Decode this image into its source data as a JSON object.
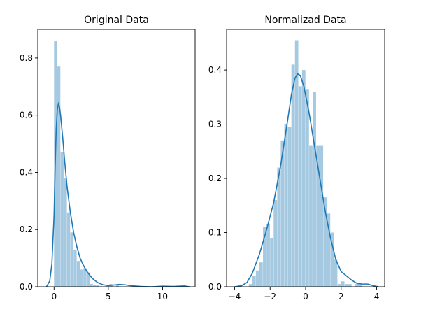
{
  "chart_data": [
    {
      "type": "bar",
      "title": "Original Data",
      "xlabel": "",
      "ylabel": "",
      "xlim": [
        -1.5,
        13.0
      ],
      "ylim": [
        0,
        0.9
      ],
      "xticks": [
        0,
        5,
        10
      ],
      "yticks": [
        0.0,
        0.2,
        0.4,
        0.6,
        0.8
      ],
      "ytick_labels": [
        "0.0",
        "0.2",
        "0.4",
        "0.6",
        "0.8"
      ],
      "bin_edges": [
        0.0,
        0.3,
        0.6,
        0.9,
        1.2,
        1.5,
        1.8,
        2.1,
        2.4,
        2.7,
        3.0,
        3.3,
        3.6,
        3.9,
        4.2,
        4.5,
        4.8,
        5.1,
        5.4,
        5.7,
        6.0,
        6.3,
        6.6,
        6.9,
        7.2,
        7.5,
        7.8,
        8.1,
        8.4,
        8.7,
        9.0,
        9.3,
        9.6,
        9.9,
        10.2,
        10.5,
        10.8,
        11.1,
        11.4,
        11.7,
        12.0
      ],
      "values": [
        0.86,
        0.77,
        0.47,
        0.38,
        0.26,
        0.19,
        0.13,
        0.09,
        0.06,
        0.065,
        0.05,
        0.01,
        0.005,
        0.005,
        0.0,
        0.0,
        0.005,
        0.01,
        0.0,
        0.005,
        0.0,
        0.0,
        0.0,
        0.0,
        0.0,
        0.0,
        0.0,
        0.0,
        0.0,
        0.0,
        0.0,
        0.0,
        0.0,
        0.0,
        0.0,
        0.0,
        0.0,
        0.0,
        0.0,
        0.0
      ],
      "kde": {
        "x": [
          -0.7,
          -0.4,
          -0.2,
          0.0,
          0.1,
          0.2,
          0.3,
          0.4,
          0.5,
          0.6,
          0.8,
          1.0,
          1.2,
          1.5,
          1.8,
          2.1,
          2.4,
          2.7,
          3.0,
          3.5,
          4.0,
          4.5,
          5.0,
          5.5,
          6.0,
          6.5,
          7.0,
          8.0,
          9.0,
          10.0,
          11.0,
          12.0,
          12.5
        ],
        "y": [
          0.0,
          0.02,
          0.08,
          0.25,
          0.42,
          0.55,
          0.62,
          0.64,
          0.63,
          0.6,
          0.52,
          0.43,
          0.35,
          0.26,
          0.19,
          0.14,
          0.1,
          0.075,
          0.055,
          0.03,
          0.015,
          0.007,
          0.004,
          0.006,
          0.008,
          0.007,
          0.004,
          0.001,
          0.0,
          0.002,
          0.001,
          0.003,
          0.0
        ]
      }
    },
    {
      "type": "bar",
      "title": "Normalizad Data",
      "xlabel": "",
      "ylabel": "",
      "xlim": [
        -4.45,
        4.45
      ],
      "ylim": [
        0,
        0.475
      ],
      "xticks": [
        -4,
        -2,
        0,
        2,
        4
      ],
      "yticks": [
        0.0,
        0.1,
        0.2,
        0.3,
        0.4
      ],
      "ytick_labels": [
        "0.0",
        "0.1",
        "0.2",
        "0.3",
        "0.4"
      ],
      "bin_edges": [
        -3.2,
        -3.0,
        -2.8,
        -2.6,
        -2.4,
        -2.2,
        -2.0,
        -1.8,
        -1.6,
        -1.4,
        -1.2,
        -1.0,
        -0.8,
        -0.6,
        -0.4,
        -0.2,
        0.0,
        0.2,
        0.4,
        0.6,
        0.8,
        1.0,
        1.2,
        1.4,
        1.6,
        1.8,
        2.0,
        2.2,
        2.4,
        2.6,
        2.8,
        3.0,
        3.2,
        3.4,
        3.6,
        3.8,
        4.0
      ],
      "values": [
        0.005,
        0.02,
        0.03,
        0.045,
        0.11,
        0.115,
        0.09,
        0.16,
        0.22,
        0.27,
        0.3,
        0.295,
        0.41,
        0.455,
        0.37,
        0.4,
        0.365,
        0.26,
        0.36,
        0.26,
        0.26,
        0.165,
        0.135,
        0.1,
        0.05,
        0.005,
        0.01,
        0.005,
        0.005,
        0.0,
        0.005,
        0.005,
        0.0,
        0.0,
        0.0,
        0.0
      ],
      "kde": {
        "x": [
          -4.0,
          -3.6,
          -3.3,
          -3.0,
          -2.6,
          -2.2,
          -1.8,
          -1.4,
          -1.0,
          -0.8,
          -0.6,
          -0.45,
          -0.3,
          -0.1,
          0.2,
          0.5,
          0.8,
          1.1,
          1.4,
          1.7,
          2.0,
          2.3,
          2.6,
          2.9,
          3.2,
          3.5,
          3.8,
          4.1
        ],
        "y": [
          0.0,
          0.002,
          0.008,
          0.025,
          0.06,
          0.105,
          0.155,
          0.225,
          0.31,
          0.355,
          0.385,
          0.393,
          0.39,
          0.37,
          0.32,
          0.26,
          0.2,
          0.14,
          0.09,
          0.05,
          0.028,
          0.02,
          0.012,
          0.006,
          0.005,
          0.005,
          0.002,
          0.0
        ]
      }
    }
  ]
}
